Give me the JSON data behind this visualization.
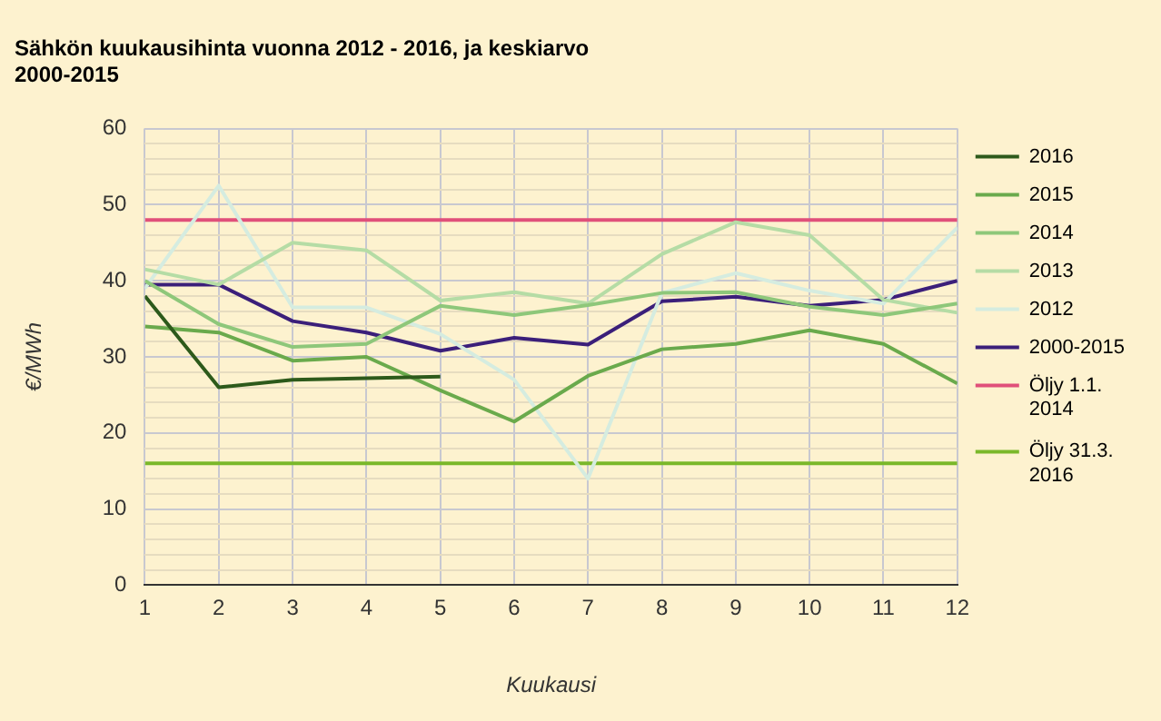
{
  "chart_data": {
    "type": "line",
    "title": "Sähkön kuukausihinta vuonna 2012 - 2016, ja keskiarvo 2000-2015",
    "xlabel": "Kuukausi",
    "ylabel": "€/MWh",
    "x": [
      1,
      2,
      3,
      4,
      5,
      6,
      7,
      8,
      9,
      10,
      11,
      12
    ],
    "xlim": [
      1,
      12
    ],
    "xticks": [
      1,
      2,
      3,
      4,
      5,
      6,
      7,
      8,
      9,
      10,
      11,
      12
    ],
    "series": [
      {
        "name": "2016",
        "color": "#2d5a1b",
        "values": [
          38,
          26,
          27,
          27.2,
          27.4,
          null,
          null,
          null,
          null,
          null,
          null,
          null
        ]
      },
      {
        "name": "2015",
        "color": "#6aaa4c",
        "values": [
          34,
          33.2,
          29.5,
          30,
          25.6,
          21.5,
          27.5,
          31,
          31.7,
          33.5,
          31.7,
          26.5
        ]
      },
      {
        "name": "2014",
        "color": "#8ec77a",
        "values": [
          40,
          34.3,
          31.3,
          31.7,
          36.7,
          35.5,
          36.8,
          38.4,
          38.5,
          36.6,
          35.5,
          37
        ]
      },
      {
        "name": "2013",
        "color": "#b5dca5",
        "values": [
          41.5,
          39.5,
          45,
          44,
          37.4,
          38.5,
          37,
          43.5,
          47.7,
          46,
          37.5,
          35.8
        ]
      },
      {
        "name": "2012",
        "color": "#d5ece0",
        "values": [
          39,
          52.5,
          36.5,
          36.5,
          33,
          27,
          14,
          38.4,
          41,
          38.7,
          37,
          47
        ]
      },
      {
        "name": "2000-2015",
        "color": "#3b1f7a",
        "values": [
          39.5,
          39.5,
          34.7,
          33.2,
          30.8,
          32.5,
          31.6,
          37.3,
          37.9,
          36.7,
          37.5,
          40
        ]
      },
      {
        "name": "Öljy 1.1. 2014",
        "color": "#e0507a",
        "values": [
          48,
          48,
          48,
          48,
          48,
          48,
          48,
          48,
          48,
          48,
          48,
          48
        ]
      },
      {
        "name": "Öljy 31.3. 2016",
        "color": "#7ab82a",
        "values": [
          16,
          16,
          16,
          16,
          16,
          16,
          16,
          16,
          16,
          16,
          16,
          16
        ]
      }
    ],
    "ylim": [
      0,
      60
    ],
    "yticks": [
      0,
      {
        "value": 2,
        "label": null
      },
      {
        "value": 4,
        "label": null
      },
      {
        "value": 6,
        "label": null
      },
      {
        "value": 8,
        "label": null
      },
      10,
      {
        "value": 12,
        "label": null
      },
      {
        "value": 14,
        "label": null
      },
      {
        "value": 16,
        "label": null
      },
      {
        "value": 18,
        "label": null
      },
      20,
      {
        "value": 22,
        "label": null
      },
      {
        "value": 24,
        "label": null
      },
      {
        "value": 26,
        "label": null
      },
      {
        "value": 28,
        "label": null
      },
      30,
      {
        "value": 32,
        "label": null
      },
      {
        "value": 34,
        "label": null
      },
      {
        "value": 36,
        "label": null
      },
      {
        "value": 38,
        "label": null
      },
      40,
      {
        "value": 42,
        "label": null
      },
      {
        "value": 44,
        "label": null
      },
      {
        "value": 46,
        "label": null
      },
      {
        "value": 48,
        "label": null
      },
      50,
      {
        "value": 52,
        "label": null
      },
      {
        "value": 54,
        "label": null
      },
      {
        "value": 56,
        "label": null
      },
      {
        "value": 58,
        "label": null
      },
      60
    ],
    "grid": true,
    "legend": "right",
    "marker": "none",
    "line_style": "solid"
  }
}
